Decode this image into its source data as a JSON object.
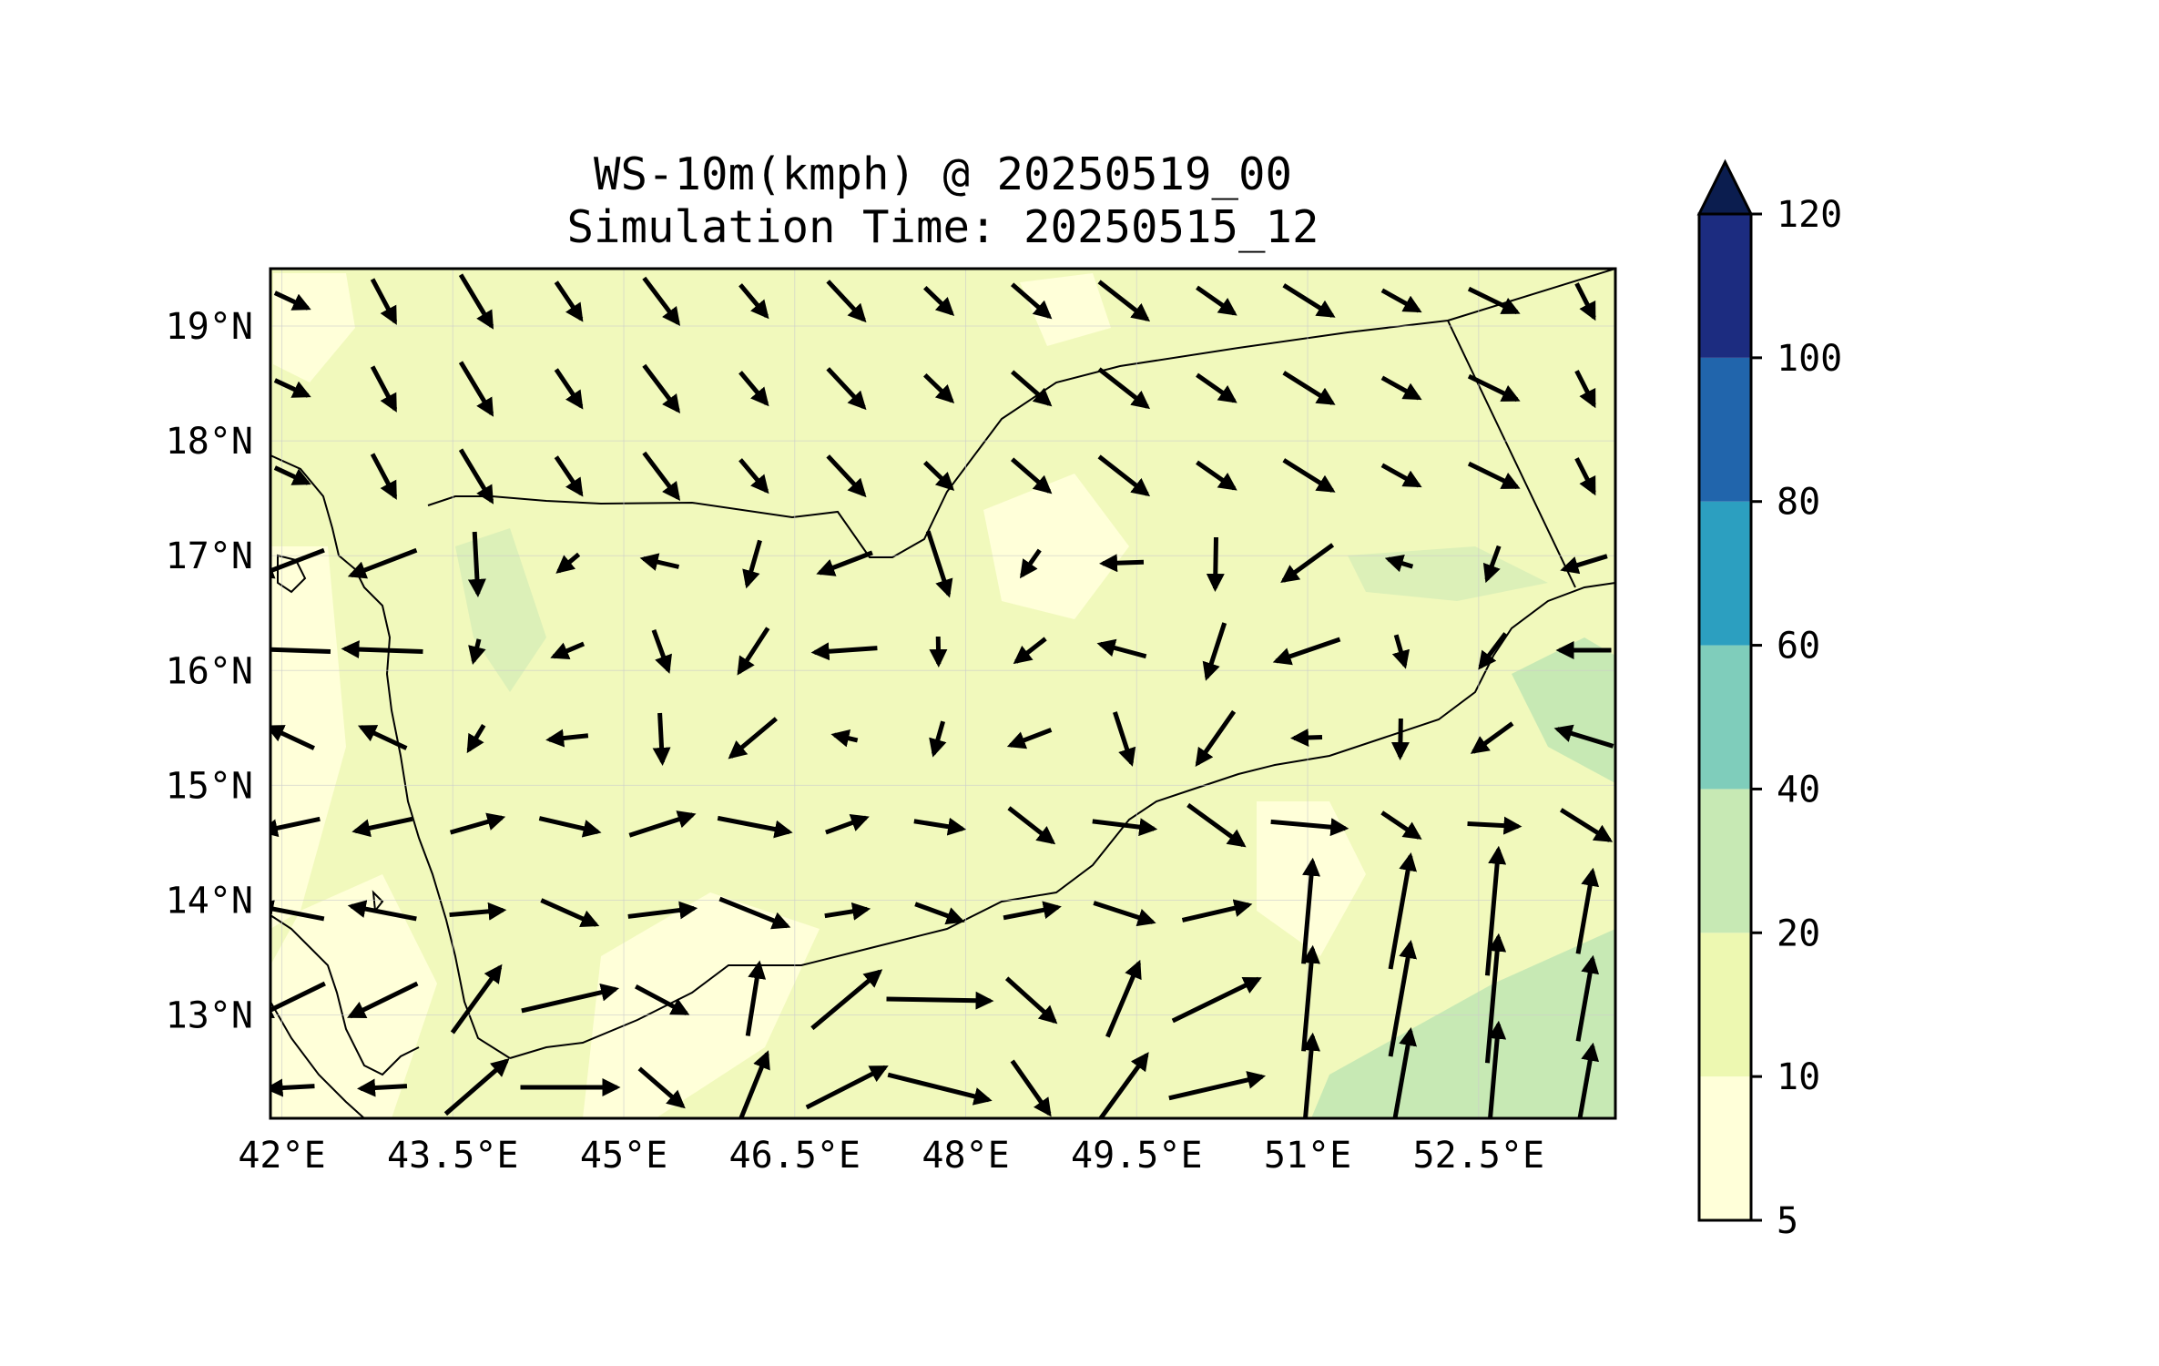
{
  "title": {
    "line1": "WS-10m(kmph) @ 20250519_00",
    "line2": "Simulation Time: 20250515_12"
  },
  "map": {
    "x_ticks": [
      "42°E",
      "43.5°E",
      "45°E",
      "46.5°E",
      "48°E",
      "49.5°E",
      "51°E",
      "52.5°E"
    ],
    "y_ticks": [
      "19°N",
      "18°N",
      "17°N",
      "16°N",
      "15°N",
      "14°N",
      "13°N"
    ],
    "lon_range": [
      41.9,
      53.7
    ],
    "lat_range": [
      12.1,
      19.5
    ],
    "field_colors": [
      "#ffffd9",
      "#edf8b1",
      "#c7e9b4"
    ],
    "vector_color": "#000000",
    "border_color": "#000000"
  },
  "colorbar": {
    "labels": [
      "5",
      "10",
      "20",
      "40",
      "60",
      "80",
      "100",
      "120"
    ],
    "colors": [
      "#ffffd9",
      "#edf8b1",
      "#c7e9b4",
      "#7fcdbb",
      "#2c9fc0",
      "#2165ac",
      "#1c2c80",
      "#0b1d4f"
    ],
    "extend": "max"
  }
}
